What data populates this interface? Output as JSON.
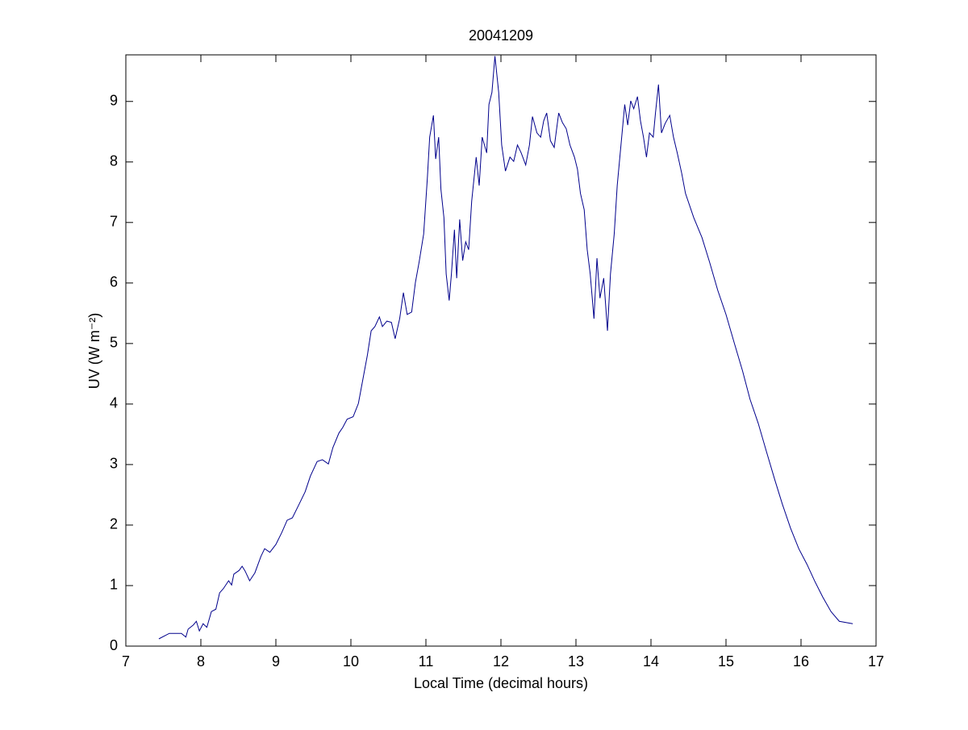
{
  "chart_data": {
    "type": "line",
    "title": "20041209",
    "xlabel": "Local Time (decimal hours)",
    "ylabel": "UV (W m⁻²)",
    "x": [
      7.44,
      7.58,
      7.74,
      7.8,
      7.83,
      7.9,
      7.94,
      7.98,
      8.03,
      8.08,
      8.14,
      8.2,
      8.25,
      8.3,
      8.37,
      8.41,
      8.44,
      8.51,
      8.55,
      8.59,
      8.65,
      8.72,
      8.8,
      8.85,
      8.92,
      9.0,
      9.08,
      9.15,
      9.22,
      9.3,
      9.39,
      9.46,
      9.55,
      9.62,
      9.7,
      9.76,
      9.84,
      9.89,
      9.95,
      10.03,
      10.1,
      10.16,
      10.22,
      10.27,
      10.32,
      10.38,
      10.42,
      10.48,
      10.54,
      10.59,
      10.65,
      10.7,
      10.75,
      10.81,
      10.86,
      10.91,
      10.97,
      11.02,
      11.05,
      11.1,
      11.13,
      11.17,
      11.2,
      11.24,
      11.27,
      11.31,
      11.34,
      11.38,
      11.41,
      11.45,
      11.49,
      11.53,
      11.57,
      11.61,
      11.67,
      11.71,
      11.75,
      11.81,
      11.84,
      11.88,
      11.92,
      11.97,
      12.01,
      12.06,
      12.12,
      12.17,
      12.22,
      12.27,
      12.33,
      12.38,
      12.42,
      12.48,
      12.53,
      12.57,
      12.61,
      12.66,
      12.71,
      12.77,
      12.82,
      12.87,
      12.92,
      12.98,
      13.02,
      13.06,
      13.11,
      13.15,
      13.19,
      13.24,
      13.28,
      13.32,
      13.37,
      13.42,
      13.46,
      13.51,
      13.55,
      13.6,
      13.65,
      13.69,
      13.73,
      13.77,
      13.82,
      13.86,
      13.9,
      13.94,
      13.98,
      14.03,
      14.06,
      14.1,
      14.14,
      14.19,
      14.25,
      14.3,
      14.35,
      14.41,
      14.46,
      14.57,
      14.68,
      14.78,
      14.89,
      15.0,
      15.11,
      15.22,
      15.32,
      15.43,
      15.54,
      15.65,
      15.75,
      15.86,
      15.97,
      16.08,
      16.18,
      16.29,
      16.4,
      16.51,
      16.69
    ],
    "series": [
      {
        "color": "#00008b",
        "values": [
          0.12,
          0.21,
          0.21,
          0.15,
          0.28,
          0.35,
          0.41,
          0.25,
          0.37,
          0.31,
          0.57,
          0.61,
          0.88,
          0.95,
          1.08,
          1.01,
          1.19,
          1.25,
          1.32,
          1.24,
          1.08,
          1.21,
          1.48,
          1.61,
          1.55,
          1.68,
          1.88,
          2.08,
          2.12,
          2.32,
          2.55,
          2.81,
          3.05,
          3.08,
          3.01,
          3.28,
          3.52,
          3.61,
          3.75,
          3.79,
          4.01,
          4.41,
          4.81,
          5.21,
          5.28,
          5.44,
          5.28,
          5.37,
          5.35,
          5.08,
          5.41,
          5.84,
          5.48,
          5.52,
          6.01,
          6.35,
          6.81,
          7.75,
          8.41,
          8.77,
          8.05,
          8.41,
          7.55,
          7.08,
          6.15,
          5.71,
          6.15,
          6.88,
          6.08,
          7.05,
          6.37,
          6.68,
          6.55,
          7.35,
          8.08,
          7.61,
          8.41,
          8.15,
          8.95,
          9.15,
          9.75,
          9.15,
          8.28,
          7.85,
          8.08,
          8.01,
          8.28,
          8.15,
          7.95,
          8.28,
          8.75,
          8.48,
          8.41,
          8.68,
          8.81,
          8.35,
          8.24,
          8.81,
          8.65,
          8.55,
          8.28,
          8.08,
          7.88,
          7.48,
          7.21,
          6.55,
          6.15,
          5.41,
          6.41,
          5.75,
          6.08,
          5.21,
          6.15,
          6.81,
          7.61,
          8.28,
          8.95,
          8.61,
          9.01,
          8.88,
          9.08,
          8.68,
          8.41,
          8.08,
          8.48,
          8.41,
          8.81,
          9.28,
          8.48,
          8.64,
          8.77,
          8.41,
          8.15,
          7.81,
          7.48,
          7.08,
          6.75,
          6.35,
          5.88,
          5.48,
          5.01,
          4.55,
          4.08,
          3.68,
          3.21,
          2.75,
          2.35,
          1.95,
          1.61,
          1.35,
          1.08,
          0.81,
          0.57,
          0.41,
          0.37
        ]
      }
    ],
    "xlim": [
      7,
      17
    ],
    "xticks": [
      7,
      8,
      9,
      10,
      11,
      12,
      13,
      14,
      15,
      16,
      17
    ],
    "ylim": [
      0,
      9.77
    ],
    "yticks": [
      0,
      1,
      2,
      3,
      4,
      5,
      6,
      7,
      8,
      9
    ],
    "grid": false
  }
}
